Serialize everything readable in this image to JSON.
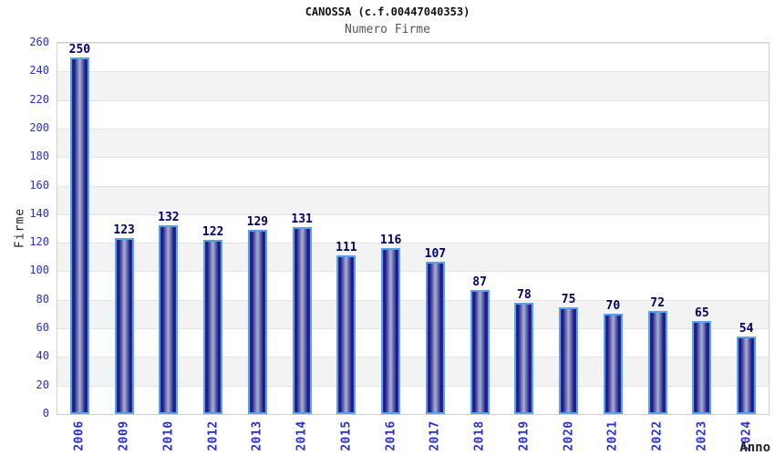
{
  "chart_data": {
    "type": "bar",
    "title": "CANOSSA (c.f.00447040353)",
    "subtitle": "Numero Firme",
    "xlabel": "Anno",
    "ylabel": "Firme",
    "categories": [
      "2006",
      "2009",
      "2010",
      "2012",
      "2013",
      "2014",
      "2015",
      "2016",
      "2017",
      "2018",
      "2019",
      "2020",
      "2021",
      "2022",
      "2023",
      "2024"
    ],
    "values": [
      250,
      123,
      132,
      122,
      129,
      131,
      111,
      116,
      107,
      87,
      78,
      75,
      70,
      72,
      65,
      54
    ],
    "ylim": [
      0,
      260
    ],
    "ytick_step": 20,
    "yticks": [
      0,
      20,
      40,
      60,
      80,
      100,
      120,
      140,
      160,
      180,
      200,
      220,
      240,
      260
    ],
    "legend": null,
    "grid": "alternating-horizontal-bands",
    "value_labels_shown": true,
    "colors": {
      "title": "#111111",
      "subtitle": "#555555",
      "tick_label": "#2a2ecb",
      "value_label": "#000066",
      "axis_title": "#222222",
      "bar_border": "#59a1e8",
      "bar_edge": "#2b2bb4",
      "bar_dark": "#15157a",
      "bar_light": "#aab0d8",
      "band_gray": "#f3f3f3",
      "band_white": "#ffffff",
      "plot_border": "#cfcfcf",
      "grid_line": "#e4e4e4"
    }
  }
}
